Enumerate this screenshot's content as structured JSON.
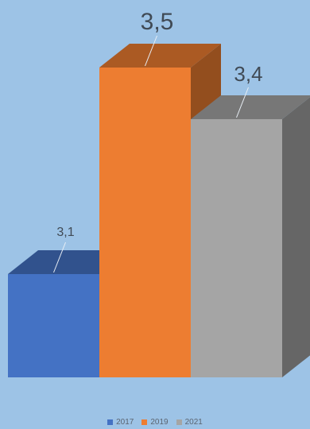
{
  "chart_data": {
    "type": "bar",
    "title": "",
    "xlabel": "",
    "ylabel": "",
    "categories": [
      "2017",
      "2019",
      "2021"
    ],
    "values": [
      3.1,
      3.5,
      3.4
    ],
    "labels": [
      "3,1",
      "3,5",
      "3,4"
    ],
    "colors": [
      "#4472c4",
      "#ed7d31",
      "#a5a5a5"
    ],
    "ylim": [
      2.9,
      3.5
    ],
    "grid": false,
    "legend": "bottom"
  },
  "legend": {
    "items": [
      {
        "label": "2017",
        "color": "#4472c4"
      },
      {
        "label": "2019",
        "color": "#ed7d31"
      },
      {
        "label": "2021",
        "color": "#a5a5a5"
      }
    ]
  }
}
